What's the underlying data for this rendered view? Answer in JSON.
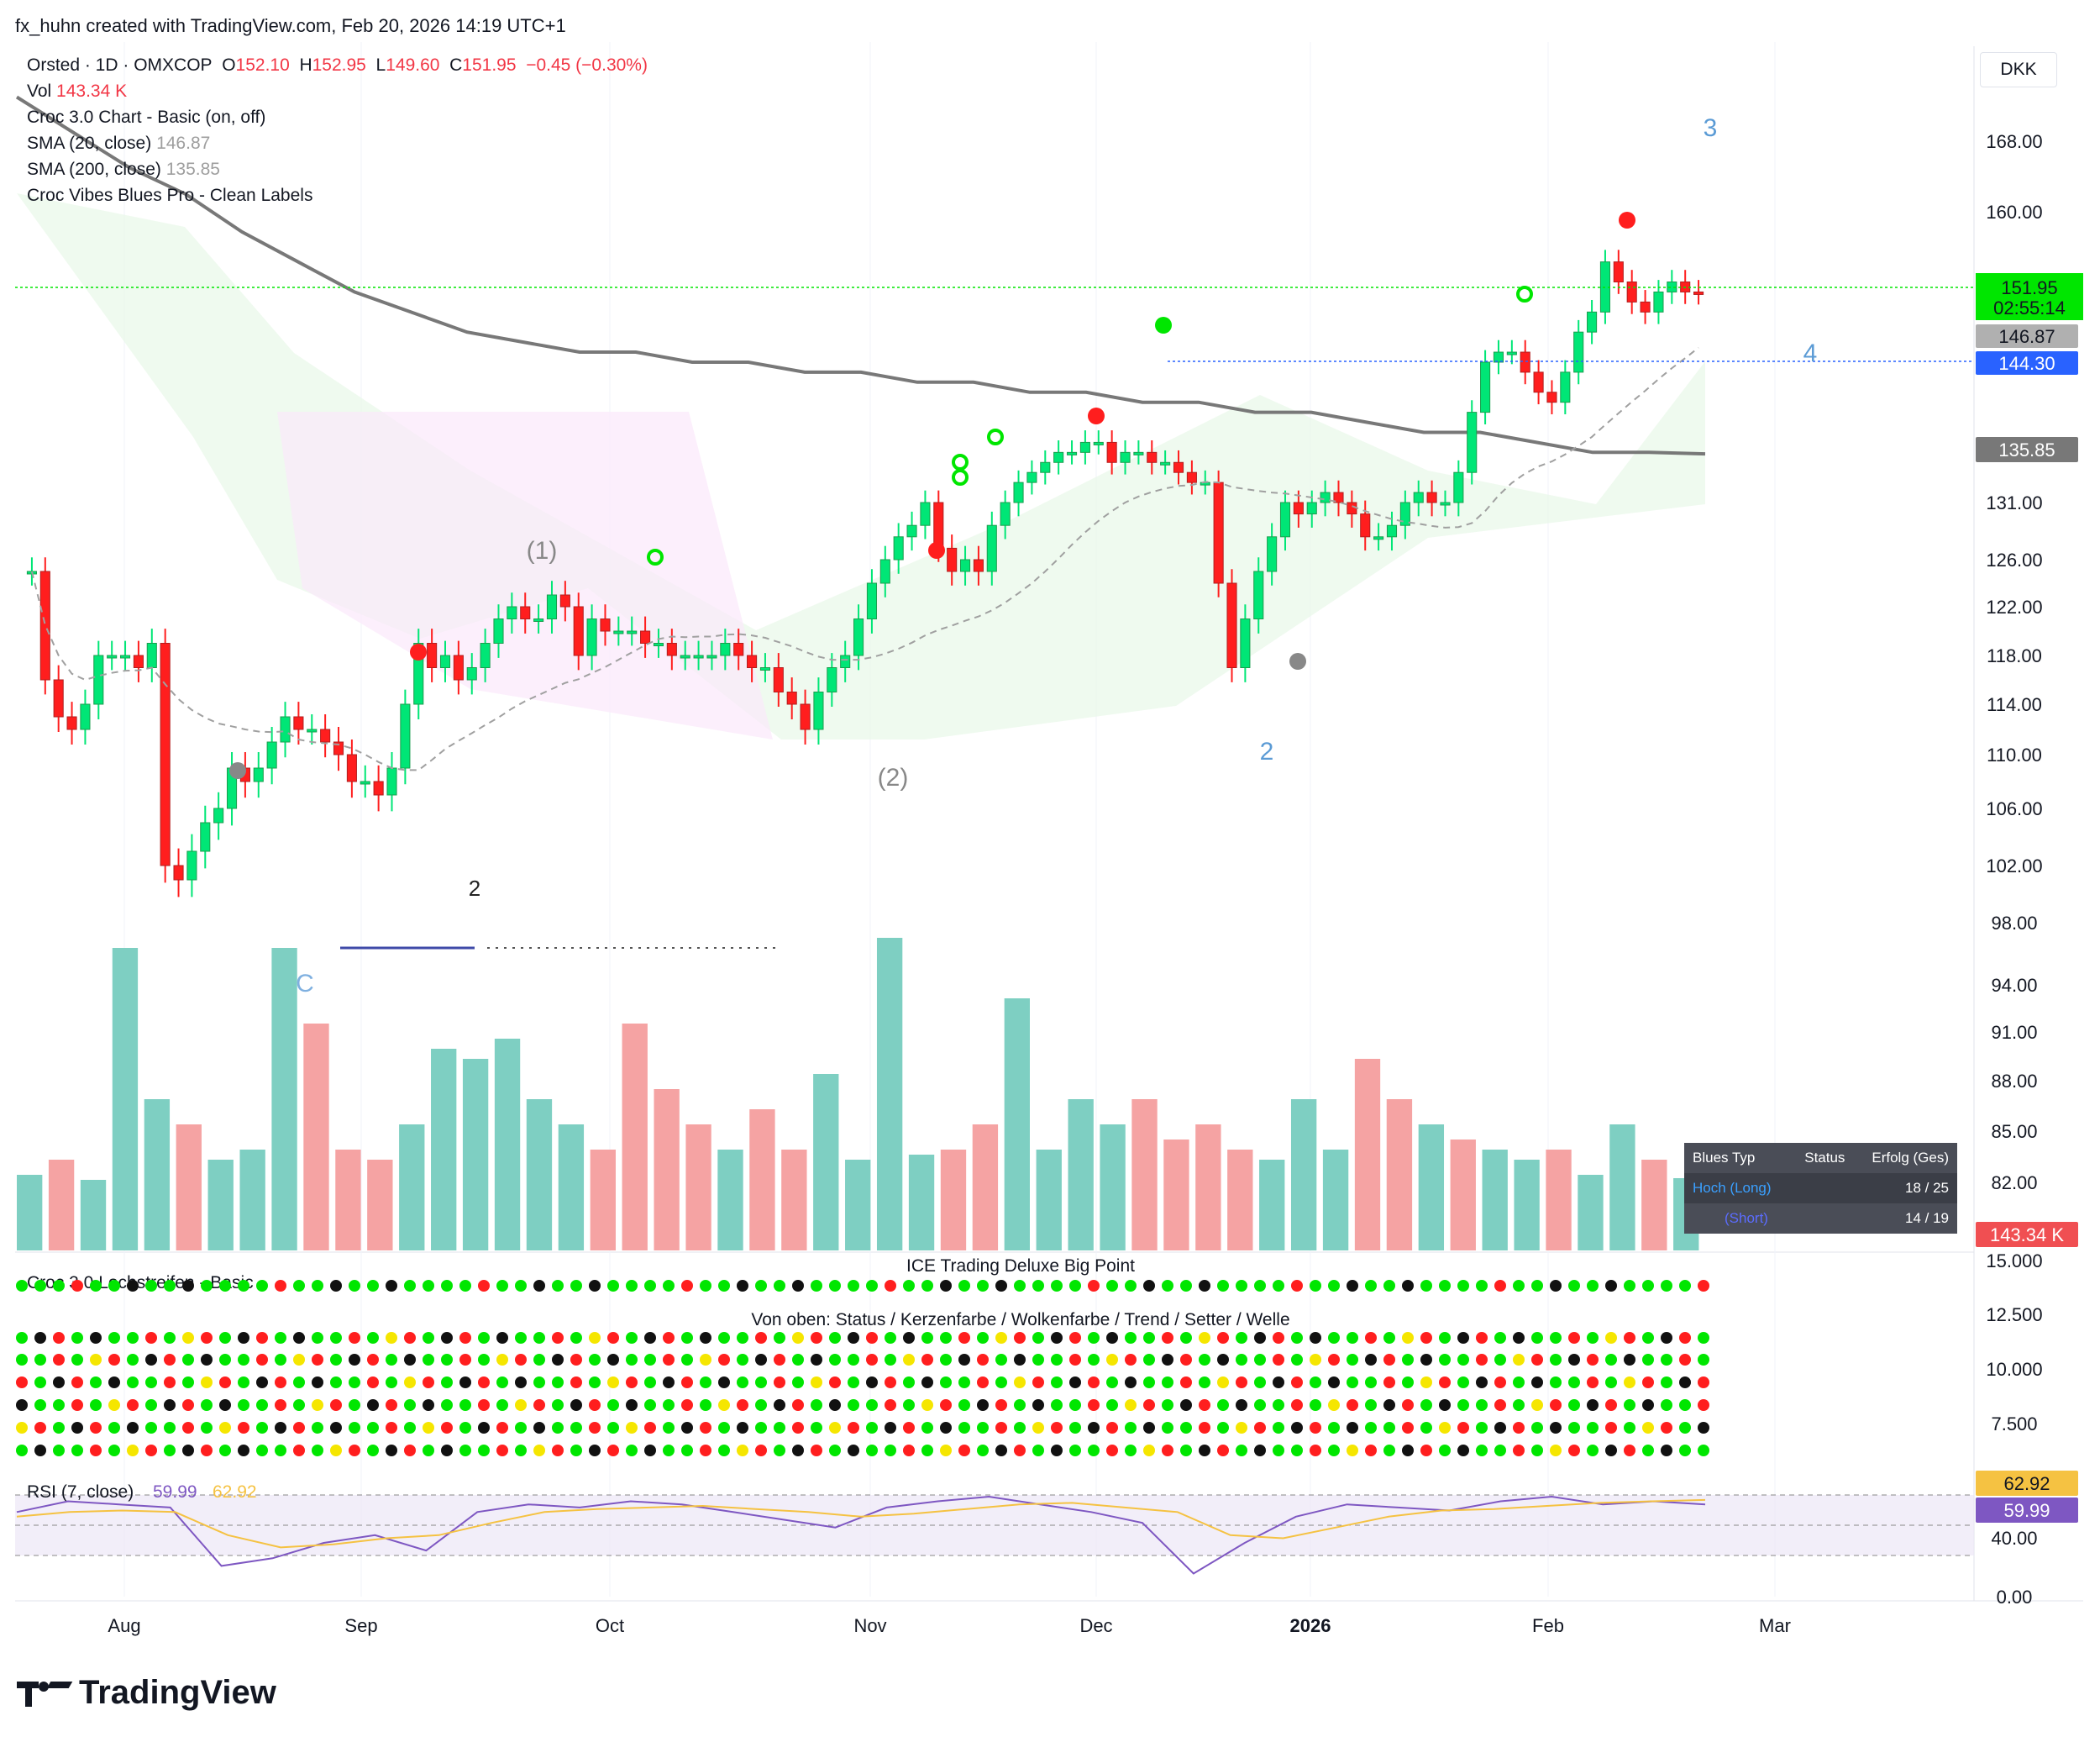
{
  "header": "fx_huhn created with TradingView.com, Feb 20, 2026 14:19 UTC+1",
  "currency": "DKK",
  "brand": "TradingView",
  "legend": {
    "symbol": "Orsted · 1D · OMXCOP",
    "o_label": "O",
    "o": "152.10",
    "h_label": "H",
    "h": "152.95",
    "l_label": "L",
    "l": "149.60",
    "c_label": "C",
    "c": "151.95",
    "change": "−0.45 (−0.30%)",
    "vol_label": "Vol",
    "vol": "143.34 K",
    "ind1": "Croc 3.0 Chart - Basic (on, off)",
    "ind2": "SMA (20, close)",
    "ind2_val": "146.87",
    "ind3": "SMA (200, close)",
    "ind3_val": "135.85",
    "ind4": "Croc Vibes Blues Pro - Clean Labels"
  },
  "pane_labels": {
    "lochstreifen": "Croc 3.0 Lochstreifen - Basic",
    "ice": "ICE Trading Deluxe Big Point",
    "von_oben": "Von oben: Status / Kerzenfarbe / Wolkenfarbe / Trend / Setter / Welle",
    "rsi": "RSI (7, close)",
    "rsi_val": "59.99",
    "rsi_ma": "62.92"
  },
  "badges": {
    "last": "151.95",
    "timer": "02:55:14",
    "sma20": "146.87",
    "level": "144.30",
    "sma200": "135.85",
    "volume": "143.34 K",
    "rsi_ma": "62.92",
    "rsi": "59.99"
  },
  "blues_table": {
    "headers": [
      "Blues Typ",
      "Status",
      "Erfolg (Ges)"
    ],
    "rows": [
      [
        "Hoch (Long)",
        "",
        "18 / 25"
      ],
      [
        "(Short)",
        "",
        "14 / 19"
      ]
    ]
  },
  "colors": {
    "up": "#00e676",
    "down": "#ff1e1e",
    "sma200": "#787878",
    "sma20": "#a0a0a0",
    "level": "#2962ff",
    "last": "#00e600",
    "rsi": "#7e57c2",
    "rsi_ma": "#f5c242"
  },
  "chart_data": {
    "type": "candlestick",
    "title": "",
    "y_ticks": [
      "168.00",
      "160.00",
      "131.00",
      "126.00",
      "122.00",
      "118.00",
      "114.00",
      "110.00",
      "106.00",
      "102.00",
      "98.00",
      "94.00",
      "91.00",
      "88.00",
      "85.00",
      "82.00"
    ],
    "x_ticks": [
      "Aug",
      "Sep",
      "Oct",
      "Nov",
      "Dec",
      "2026",
      "Feb",
      "Mar"
    ],
    "lower_ticks": [
      "15.000",
      "12.500",
      "10.000",
      "7.500"
    ],
    "rsi_ticks": [
      "40.00",
      "0.00"
    ],
    "wave_labels": [
      "3",
      "4",
      "(1)",
      "(2)",
      "2",
      "C",
      "2"
    ],
    "series": [
      {
        "name": "Orsted · 1D · OMXCOP",
        "close": [
          125,
          116,
          113,
          112,
          114,
          118,
          118,
          118,
          117,
          119,
          102,
          101,
          103,
          105,
          106,
          109,
          108,
          109,
          111,
          113,
          112,
          112,
          111,
          110,
          108,
          108,
          107,
          109,
          114,
          119,
          117,
          118,
          116,
          117,
          119,
          121,
          122,
          121,
          121,
          123,
          122,
          118,
          121,
          120,
          120,
          120,
          119,
          119,
          118,
          118,
          118,
          118,
          119,
          118,
          117,
          117,
          115,
          114,
          112,
          115,
          117,
          118,
          121,
          124,
          126,
          128,
          129,
          131,
          127,
          125,
          126,
          125,
          129,
          131,
          133,
          134,
          135,
          136,
          136,
          137,
          137,
          135,
          136,
          136,
          135,
          135,
          134,
          133,
          133,
          124,
          117,
          121,
          125,
          128,
          131,
          130,
          131,
          132,
          131,
          130,
          128,
          128,
          129,
          131,
          132,
          131,
          131,
          134,
          140,
          145,
          146,
          146,
          144,
          142,
          141,
          144,
          148,
          150,
          155,
          153,
          151,
          150,
          152,
          153,
          152,
          151.95
        ]
      }
    ],
    "sma200": [
      173,
      169,
      165,
      162,
      158,
      155,
      152,
      150,
      148,
      147,
      146,
      146,
      145,
      145,
      144,
      144,
      143,
      143,
      142,
      142,
      141,
      141,
      140,
      140,
      139,
      138,
      138,
      137,
      136,
      136,
      135.85
    ],
    "volume_k": [
      150,
      180,
      140,
      600,
      300,
      250,
      180,
      200,
      600,
      450,
      200,
      180,
      250,
      400,
      380,
      420,
      300,
      250,
      200,
      450,
      320,
      250,
      200,
      280,
      200,
      350,
      180,
      620,
      190,
      200,
      250,
      500,
      200,
      300,
      250,
      300,
      220,
      250,
      200,
      180,
      300,
      200,
      380,
      300,
      250,
      220,
      200,
      180,
      200,
      150,
      250,
      180,
      143.34
    ],
    "rsi": [
      55,
      62,
      60,
      58,
      20,
      25,
      35,
      40,
      30,
      55,
      60,
      58,
      62,
      60,
      55,
      50,
      45,
      58,
      62,
      65,
      60,
      55,
      48,
      15,
      35,
      52,
      60,
      58,
      56,
      62,
      65,
      60,
      62,
      59.99
    ],
    "rsi_ma": [
      52,
      55,
      56,
      55,
      40,
      32,
      34,
      38,
      40,
      48,
      55,
      57,
      58,
      59,
      57,
      55,
      52,
      54,
      57,
      60,
      61,
      58,
      55,
      40,
      38,
      45,
      52,
      56,
      57,
      59,
      61,
      62,
      62.92
    ]
  }
}
